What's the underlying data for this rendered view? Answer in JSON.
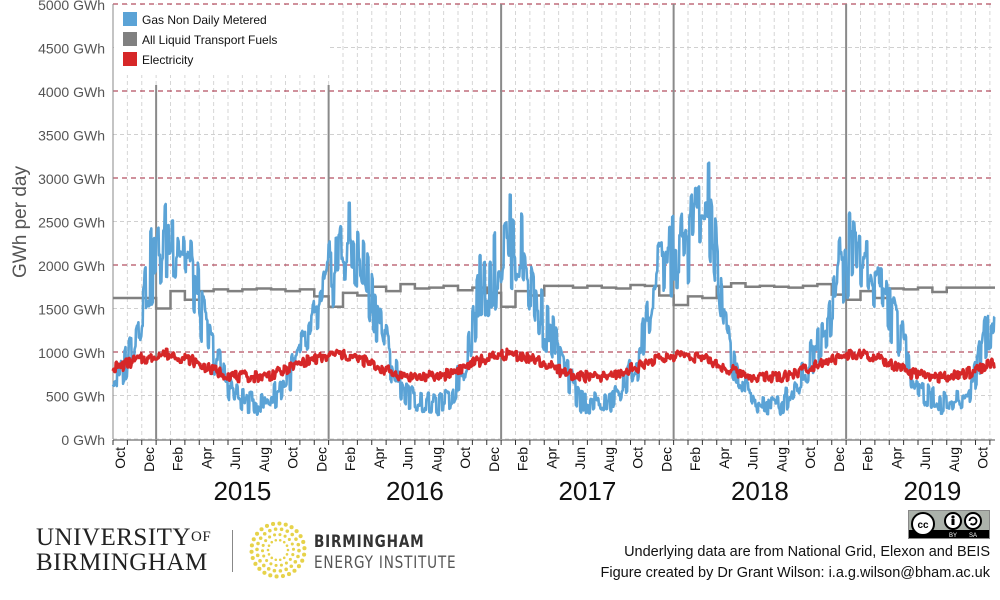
{
  "chart_data": {
    "type": "line",
    "ylabel": "GWh per day",
    "y_unit_suffix": " GWh",
    "ylim": [
      0,
      5000
    ],
    "y_ticks": [
      0,
      500,
      1000,
      1500,
      2000,
      2500,
      3000,
      3500,
      4000,
      4500,
      5000
    ],
    "x_start": "2014-10",
    "x_end": "2019-11",
    "month_labels": [
      "Oct",
      "Dec",
      "Feb",
      "Apr",
      "Jun",
      "Aug"
    ],
    "year_labels": [
      "2015",
      "2016",
      "2017",
      "2018",
      "2019"
    ],
    "legend_position": "top-left",
    "grid": true,
    "x_months": [
      "2014-10",
      "2014-11",
      "2014-12",
      "2015-01",
      "2015-02",
      "2015-03",
      "2015-04",
      "2015-05",
      "2015-06",
      "2015-07",
      "2015-08",
      "2015-09",
      "2015-10",
      "2015-11",
      "2015-12",
      "2016-01",
      "2016-02",
      "2016-03",
      "2016-04",
      "2016-05",
      "2016-06",
      "2016-07",
      "2016-08",
      "2016-09",
      "2016-10",
      "2016-11",
      "2016-12",
      "2017-01",
      "2017-02",
      "2017-03",
      "2017-04",
      "2017-05",
      "2017-06",
      "2017-07",
      "2017-08",
      "2017-09",
      "2017-10",
      "2017-11",
      "2017-12",
      "2018-01",
      "2018-02",
      "2018-03",
      "2018-04",
      "2018-05",
      "2018-06",
      "2018-07",
      "2018-08",
      "2018-09",
      "2018-10",
      "2018-11",
      "2018-12",
      "2019-01",
      "2019-02",
      "2019-03",
      "2019-04",
      "2019-05",
      "2019-06",
      "2019-07",
      "2019-08",
      "2019-09",
      "2019-10",
      "2019-11"
    ],
    "series": [
      {
        "name": "Gas Non Daily Metered",
        "color": "#5ba3d6",
        "values": [
          700,
          1200,
          1900,
          2200,
          2400,
          1900,
          1200,
          800,
          500,
          420,
          400,
          550,
          800,
          1100,
          1500,
          2100,
          2200,
          1900,
          1400,
          800,
          500,
          420,
          380,
          450,
          900,
          1700,
          1900,
          2300,
          2100,
          1500,
          1200,
          750,
          450,
          400,
          400,
          600,
          900,
          1600,
          2100,
          2100,
          2500,
          2600,
          1300,
          700,
          450,
          380,
          400,
          600,
          900,
          1300,
          1900,
          2200,
          2000,
          1700,
          1300,
          800,
          500,
          420,
          400,
          500,
          1100,
          1400
        ]
      },
      {
        "name": "All Liquid Transport Fuels",
        "color": "#808080",
        "values": [
          1620,
          1620,
          1620,
          1500,
          1700,
          1600,
          1700,
          1720,
          1700,
          1720,
          1730,
          1720,
          1700,
          1720,
          1640,
          1520,
          1680,
          1650,
          1750,
          1700,
          1780,
          1730,
          1740,
          1760,
          1710,
          1740,
          1680,
          1520,
          1700,
          1650,
          1760,
          1760,
          1740,
          1760,
          1740,
          1730,
          1770,
          1760,
          1650,
          1540,
          1640,
          1620,
          1750,
          1790,
          1750,
          1760,
          1750,
          1740,
          1760,
          1780,
          1660,
          1600,
          1700,
          1620,
          1730,
          1720,
          1740,
          1690,
          1740,
          1740,
          1740,
          1740
        ]
      },
      {
        "name": "Electricity",
        "color": "#d62728",
        "values": [
          830,
          900,
          930,
          980,
          950,
          900,
          820,
          760,
          720,
          710,
          720,
          760,
          830,
          900,
          930,
          980,
          950,
          900,
          820,
          760,
          720,
          710,
          720,
          760,
          830,
          900,
          930,
          980,
          950,
          900,
          820,
          760,
          720,
          710,
          720,
          760,
          830,
          900,
          930,
          980,
          950,
          900,
          820,
          760,
          720,
          710,
          720,
          760,
          830,
          900,
          930,
          980,
          950,
          900,
          820,
          760,
          720,
          710,
          720,
          760,
          830,
          880
        ]
      }
    ]
  },
  "footer": {
    "university_line1": "UNIVERSITY",
    "university_of": "OF",
    "university_line2": "BIRMINGHAM",
    "institute_line1": "BIRMINGHAM",
    "institute_line2": "ENERGY INSTITUTE",
    "license": "CC BY SA",
    "license_by": "BY",
    "license_sa": "SA",
    "credit_line1": "Underlying data are from National Grid, Elexon and BEIS",
    "credit_line2": "Figure created by Dr Grant Wilson: i.a.g.wilson@bham.ac.uk"
  }
}
